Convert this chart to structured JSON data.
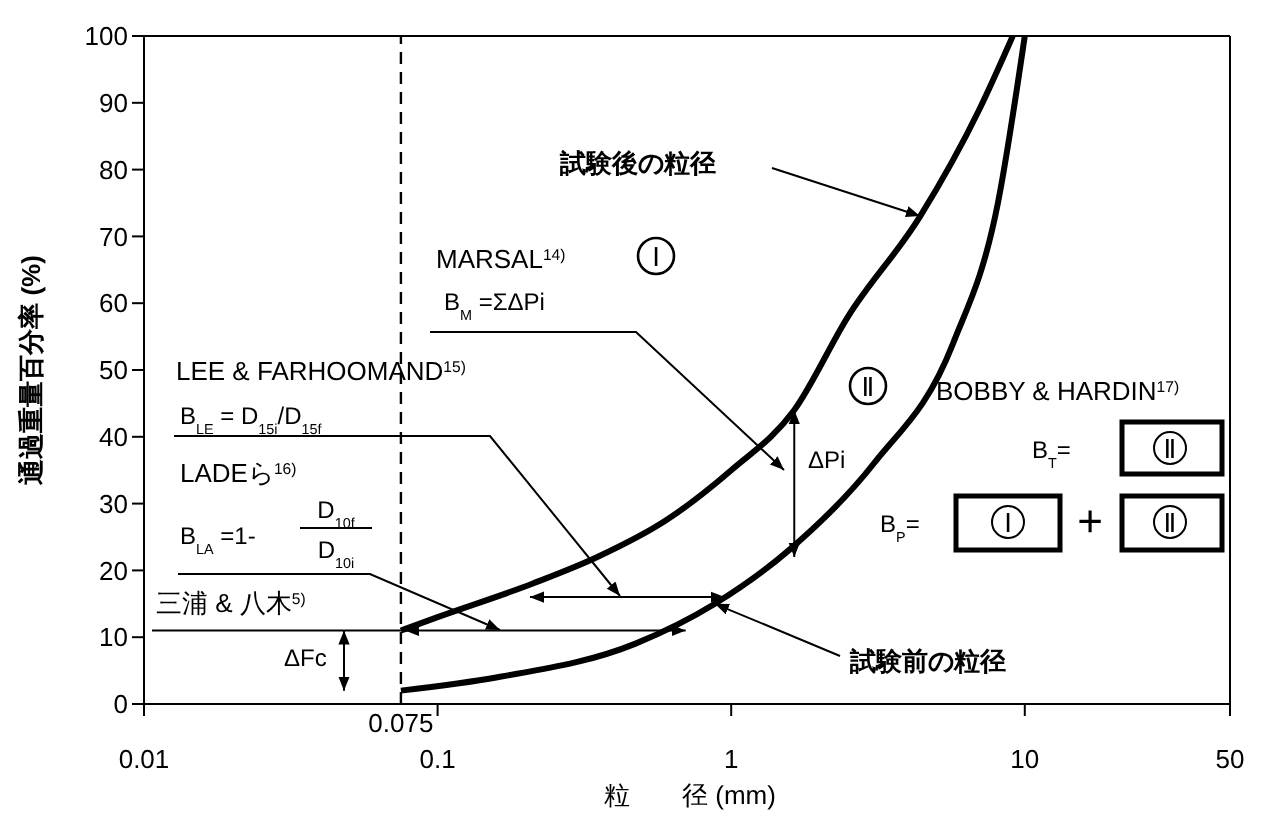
{
  "chart_data": {
    "type": "line",
    "xlabel": "粒　　径 (mm)",
    "ylabel": "通過重量百分率 (%)",
    "log": "x",
    "xlim": [
      0.01,
      50
    ],
    "ylim": [
      0,
      100
    ],
    "xticks": [
      0.01,
      0.1,
      1,
      10,
      50
    ],
    "yticks": [
      0,
      10,
      20,
      30,
      40,
      50,
      60,
      70,
      80,
      90,
      100
    ],
    "grid": false,
    "legend": false,
    "marker": "none",
    "line_style": "solid",
    "ref_lines": [
      {
        "axis": "x",
        "value": 0.075,
        "label": "0.075",
        "line_style": "dashed",
        "color": "#000000"
      }
    ],
    "series": [
      {
        "color": "#000000",
        "x": [
          0.075,
          0.1,
          0.21,
          0.35,
          0.6,
          1,
          1.64,
          2.5,
          4.4,
          7,
          9.1
        ],
        "values": [
          11,
          13,
          18,
          22,
          27.5,
          35,
          44,
          58,
          73,
          89,
          100
        ]
      },
      {
        "color": "#000000",
        "x": [
          0.075,
          0.16,
          0.47,
          0.88,
          1.57,
          3.06,
          5.7,
          8.1,
          10
        ],
        "values": [
          2,
          4,
          9,
          15,
          23,
          36,
          54,
          75,
          100
        ]
      }
    ],
    "annotations": [
      "MARSAL$^{14)}$",
      "Ⅰ",
      "B$_{M}$ =ΣΔPi",
      "LEE & FARHOOMAND$^{15)}$",
      "B$_{LE}$ = D$_{15i}$/D$_{15f}$",
      "LADEら$^{16)}$",
      "B$_{LA}$ =1-",
      "D$_{10f}$",
      "D$_{10i}$",
      {
        "text": "三浦 & 八木$^{5)}$",
        "x": 0.075,
        "y": 11
      },
      "ΔFc",
      "ΔPi",
      "Ⅱ",
      "BOBBY & HARDIN$^{17)}$",
      "B$_{T}$=",
      "Ⅱ",
      "B$_{P}$=",
      "Ⅰ",
      "+",
      "Ⅱ",
      "試験後の粒径",
      {
        "text": "試験前の粒径",
        "x": 0.88,
        "y": 15
      }
    ]
  }
}
